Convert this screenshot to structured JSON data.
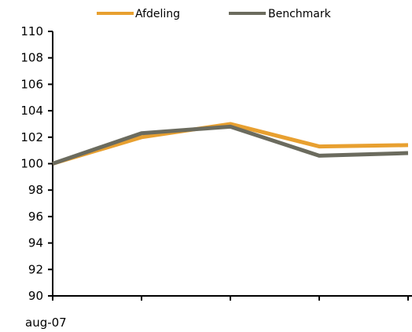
{
  "chart_data": {
    "type": "line",
    "x": [
      "aug-07",
      "",
      "",
      "",
      ""
    ],
    "x_tick_labels": [
      "aug-07"
    ],
    "series": [
      {
        "name": "Afdeling",
        "color": "#E8A030",
        "values": [
          100.0,
          102.0,
          103.0,
          101.3,
          101.4
        ]
      },
      {
        "name": "Benchmark",
        "color": "#6B6B5E",
        "values": [
          100.0,
          102.3,
          102.8,
          100.6,
          100.8
        ]
      }
    ],
    "ylim": [
      90,
      110
    ],
    "yticks": [
      90,
      92,
      94,
      96,
      98,
      100,
      102,
      104,
      106,
      108,
      110
    ],
    "grid": false,
    "legend": "top"
  }
}
